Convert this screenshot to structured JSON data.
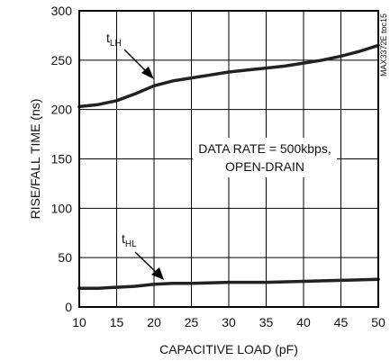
{
  "chart_data": {
    "type": "line",
    "xlabel": "CAPACITIVE LOAD (pF)",
    "ylabel": "RISE/FALL TIME (ns)",
    "xlim": [
      10,
      50
    ],
    "ylim": [
      0,
      300
    ],
    "x_ticks": [
      "10",
      "15",
      "20",
      "25",
      "30",
      "35",
      "40",
      "45",
      "50"
    ],
    "y_ticks": [
      "0",
      "50",
      "100",
      "150",
      "200",
      "250",
      "300"
    ],
    "grid": true,
    "annotation_lines": [
      "DATA RATE = 500kbps,",
      "OPEN-DRAIN"
    ],
    "side_label": "MAX3372E toc15",
    "series": [
      {
        "name_main": "t",
        "name_sub": "LH",
        "x": [
          10,
          12.5,
          15,
          17.5,
          20,
          22.5,
          25,
          27.5,
          30,
          32.5,
          35,
          37.5,
          40,
          42.5,
          45,
          47.5,
          50
        ],
        "values": [
          203,
          205,
          209,
          216,
          224,
          229,
          232,
          235,
          238,
          240,
          242,
          244,
          247,
          250,
          254,
          259,
          265
        ]
      },
      {
        "name_main": "t",
        "name_sub": "HL",
        "x": [
          10,
          12.5,
          15,
          17.5,
          20,
          22.5,
          25,
          30,
          35,
          40,
          45,
          50
        ],
        "values": [
          19,
          19,
          20,
          21,
          23,
          24,
          24,
          25,
          25,
          26,
          27,
          28
        ]
      }
    ]
  }
}
